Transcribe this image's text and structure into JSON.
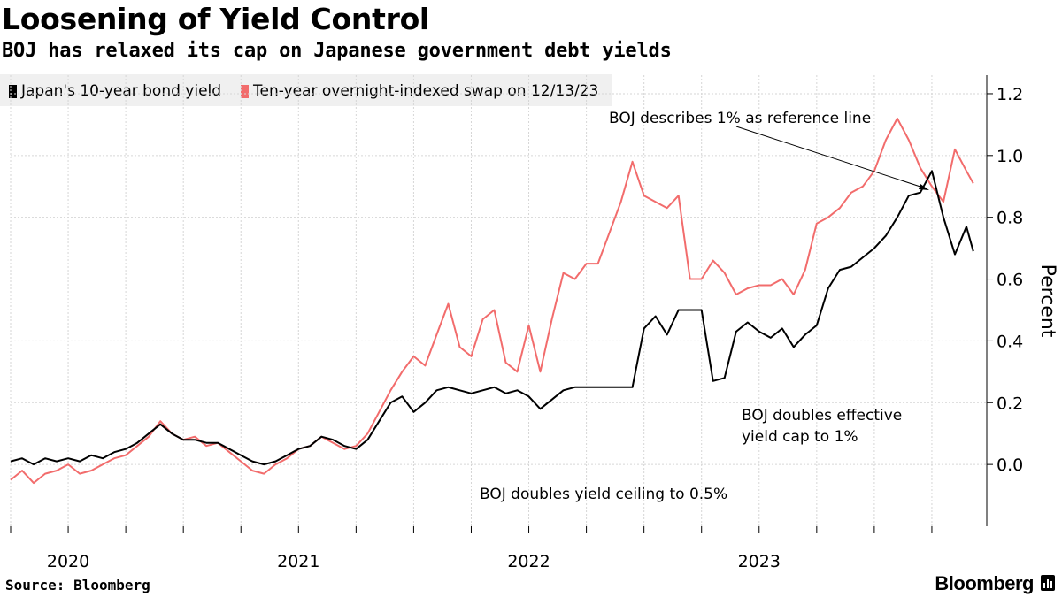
{
  "header": {
    "title": "Loosening of Yield Control",
    "subtitle": "BOJ has relaxed its cap on Japanese government debt yields"
  },
  "footer": {
    "source": "Source: Bloomberg",
    "brand": "Bloomberg"
  },
  "colors": {
    "series_jgb": "#000000",
    "series_swap": "#f26c6c",
    "grid": "#d0d0d0",
    "legend_bg": "#f0f0f0"
  },
  "chart_data": {
    "type": "line",
    "title": "Loosening of Yield Control",
    "subtitle": "BOJ has relaxed its cap on Japanese government debt yields",
    "xlabel": "",
    "ylabel": "Percent",
    "ylim": [
      -0.2,
      1.26
    ],
    "xlim": [
      2019.75,
      2023.95
    ],
    "y_ticks": [
      "1.2",
      "1.0",
      "0.8",
      "0.6",
      "0.4",
      "0.2",
      "0.0"
    ],
    "y_tick_values": [
      1.2,
      1.0,
      0.8,
      0.6,
      0.4,
      0.2,
      0.0
    ],
    "x_tick_labels": [
      "2020",
      "2021",
      "2022",
      "2023"
    ],
    "x_tick_label_positions": [
      2020.0,
      2021.0,
      2022.0,
      2023.0
    ],
    "x_tick_marks": [
      2019.75,
      2020.0,
      2020.25,
      2020.5,
      2020.75,
      2021.0,
      2021.25,
      2021.5,
      2021.75,
      2022.0,
      2022.25,
      2022.5,
      2022.75,
      2023.0,
      2023.25,
      2023.5,
      2023.75
    ],
    "grid": true,
    "legend_position": "top-left",
    "series": [
      {
        "name": "Japan's 10-year bond yield",
        "x": [
          2019.75,
          2019.8,
          2019.85,
          2019.9,
          2019.95,
          2020.0,
          2020.05,
          2020.1,
          2020.15,
          2020.2,
          2020.25,
          2020.3,
          2020.35,
          2020.4,
          2020.45,
          2020.5,
          2020.55,
          2020.6,
          2020.65,
          2020.7,
          2020.75,
          2020.8,
          2020.85,
          2020.9,
          2020.95,
          2021.0,
          2021.05,
          2021.1,
          2021.15,
          2021.2,
          2021.25,
          2021.3,
          2021.35,
          2021.4,
          2021.45,
          2021.5,
          2021.55,
          2021.6,
          2021.65,
          2021.7,
          2021.75,
          2021.8,
          2021.85,
          2021.9,
          2021.95,
          2022.0,
          2022.05,
          2022.1,
          2022.15,
          2022.2,
          2022.25,
          2022.3,
          2022.35,
          2022.4,
          2022.45,
          2022.5,
          2022.55,
          2022.6,
          2022.65,
          2022.7,
          2022.75,
          2022.8,
          2022.85,
          2022.9,
          2022.95,
          2023.0,
          2023.05,
          2023.1,
          2023.15,
          2023.2,
          2023.25,
          2023.3,
          2023.35,
          2023.4,
          2023.45,
          2023.5,
          2023.55,
          2023.6,
          2023.65,
          2023.7,
          2023.75,
          2023.8,
          2023.85,
          2023.9,
          2023.93
        ],
        "values": [
          0.01,
          0.02,
          0.0,
          0.02,
          0.01,
          0.02,
          0.01,
          0.03,
          0.02,
          0.04,
          0.05,
          0.07,
          0.1,
          0.13,
          0.1,
          0.08,
          0.08,
          0.07,
          0.07,
          0.05,
          0.03,
          0.01,
          0.0,
          0.01,
          0.03,
          0.05,
          0.06,
          0.09,
          0.08,
          0.06,
          0.05,
          0.08,
          0.14,
          0.2,
          0.22,
          0.17,
          0.2,
          0.24,
          0.25,
          0.24,
          0.23,
          0.24,
          0.25,
          0.23,
          0.24,
          0.22,
          0.18,
          0.21,
          0.24,
          0.25,
          0.25,
          0.25,
          0.25,
          0.25,
          0.25,
          0.44,
          0.48,
          0.42,
          0.5,
          0.5,
          0.5,
          0.27,
          0.28,
          0.43,
          0.46,
          0.43,
          0.41,
          0.44,
          0.38,
          0.42,
          0.45,
          0.57,
          0.63,
          0.64,
          0.67,
          0.7,
          0.74,
          0.8,
          0.87,
          0.88,
          0.95,
          0.8,
          0.68,
          0.77,
          0.69
        ]
      },
      {
        "name": "Ten-year overnight-indexed swap on 12/13/23",
        "x": [
          2019.75,
          2019.8,
          2019.85,
          2019.9,
          2019.95,
          2020.0,
          2020.05,
          2020.1,
          2020.15,
          2020.2,
          2020.25,
          2020.3,
          2020.35,
          2020.4,
          2020.45,
          2020.5,
          2020.55,
          2020.6,
          2020.65,
          2020.7,
          2020.75,
          2020.8,
          2020.85,
          2020.9,
          2020.95,
          2021.0,
          2021.05,
          2021.1,
          2021.15,
          2021.2,
          2021.25,
          2021.3,
          2021.35,
          2021.4,
          2021.45,
          2021.5,
          2021.55,
          2021.6,
          2021.65,
          2021.7,
          2021.75,
          2021.8,
          2021.85,
          2021.9,
          2021.95,
          2022.0,
          2022.05,
          2022.1,
          2022.15,
          2022.2,
          2022.25,
          2022.3,
          2022.35,
          2022.4,
          2022.45,
          2022.5,
          2022.55,
          2022.6,
          2022.65,
          2022.7,
          2022.75,
          2022.8,
          2022.85,
          2022.9,
          2022.95,
          2023.0,
          2023.05,
          2023.1,
          2023.15,
          2023.2,
          2023.25,
          2023.3,
          2023.35,
          2023.4,
          2023.45,
          2023.5,
          2023.55,
          2023.6,
          2023.65,
          2023.7,
          2023.75,
          2023.8,
          2023.85,
          2023.9,
          2023.93
        ],
        "values": [
          -0.05,
          -0.02,
          -0.06,
          -0.03,
          -0.02,
          0.0,
          -0.03,
          -0.02,
          0.0,
          0.02,
          0.03,
          0.06,
          0.09,
          0.14,
          0.1,
          0.08,
          0.09,
          0.06,
          0.07,
          0.04,
          0.01,
          -0.02,
          -0.03,
          0.0,
          0.02,
          0.05,
          0.06,
          0.09,
          0.07,
          0.05,
          0.06,
          0.1,
          0.17,
          0.24,
          0.3,
          0.35,
          0.32,
          0.42,
          0.52,
          0.38,
          0.35,
          0.47,
          0.5,
          0.33,
          0.3,
          0.45,
          0.3,
          0.47,
          0.62,
          0.6,
          0.65,
          0.65,
          0.75,
          0.85,
          0.98,
          0.87,
          0.85,
          0.83,
          0.87,
          0.6,
          0.6,
          0.66,
          0.62,
          0.55,
          0.57,
          0.58,
          0.58,
          0.6,
          0.55,
          0.63,
          0.78,
          0.8,
          0.83,
          0.88,
          0.9,
          0.95,
          1.05,
          1.12,
          1.05,
          0.96,
          0.9,
          0.85,
          1.02,
          0.95,
          0.91
        ]
      }
    ],
    "annotations": [
      {
        "text": "BOJ describes 1% as reference line",
        "points_to": {
          "x": 2023.66,
          "y": 0.9
        }
      },
      {
        "lines": [
          "BOJ doubles effective",
          "yield cap to 1%"
        ]
      },
      {
        "text": "BOJ doubles yield ceiling to 0.5%"
      }
    ]
  }
}
